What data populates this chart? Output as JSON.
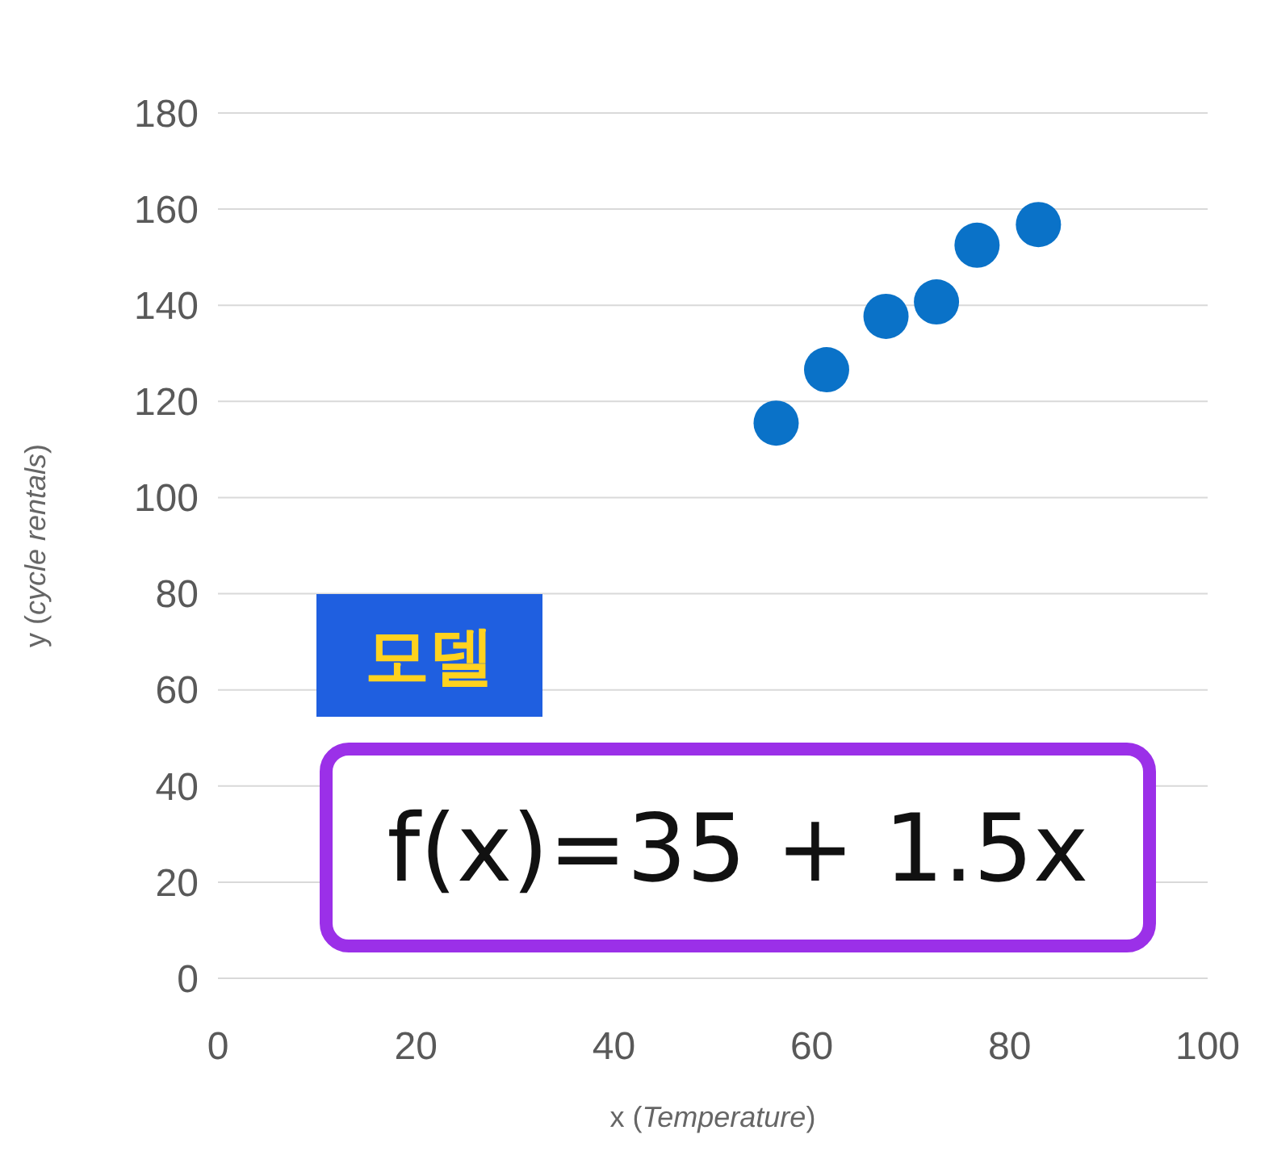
{
  "chart_data": {
    "type": "scatter",
    "xlabel": "x (Temperature)",
    "ylabel": "y (cycle rentals)",
    "x": [
      56.4,
      61.5,
      67.5,
      72.6,
      76.7,
      82.9
    ],
    "series": [
      {
        "color": "#0a72c8",
        "values": [
          115.5,
          126.6,
          137.7,
          140.7,
          152.5,
          156.8
        ]
      }
    ],
    "xlim": [
      0,
      100
    ],
    "xticks": [
      0,
      20,
      40,
      60,
      80,
      100
    ],
    "ylim": [
      0,
      180
    ],
    "yticks": [
      0,
      20,
      40,
      60,
      80,
      100,
      120,
      140,
      160,
      180
    ],
    "grid": "y",
    "marker": "circle",
    "annotations": [
      "모델",
      "f(x)=35 + 1.5x"
    ]
  }
}
